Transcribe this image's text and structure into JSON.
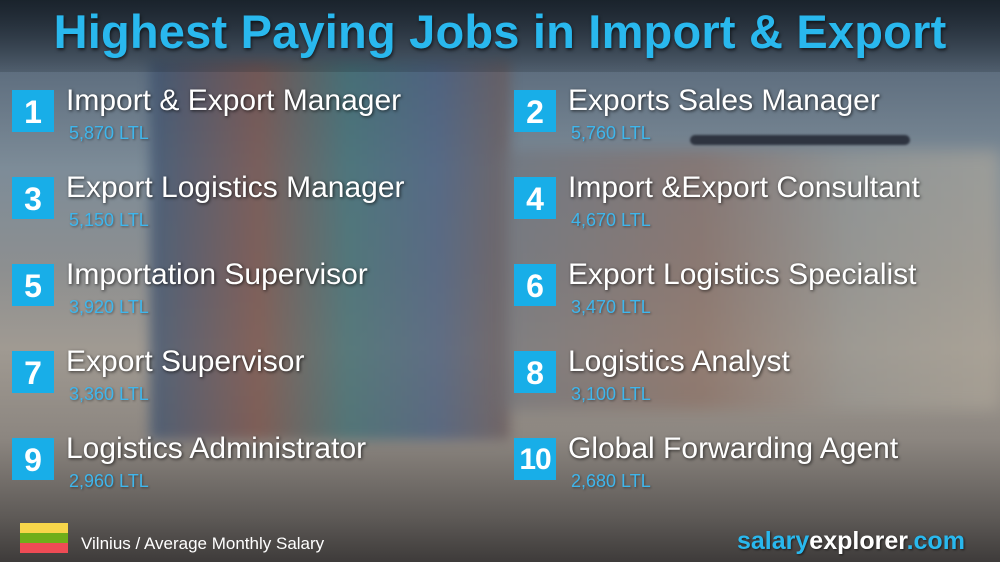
{
  "title": "Highest Paying Jobs in Import & Export",
  "jobs": [
    {
      "rank": "1",
      "title": "Import & Export Manager",
      "salary": "5,870 LTL"
    },
    {
      "rank": "2",
      "title": "Exports Sales Manager",
      "salary": "5,760 LTL"
    },
    {
      "rank": "3",
      "title": "Export Logistics Manager",
      "salary": "5,150 LTL"
    },
    {
      "rank": "4",
      "title": "Import &Export Consultant",
      "salary": "4,670 LTL"
    },
    {
      "rank": "5",
      "title": "Importation Supervisor",
      "salary": "3,920 LTL"
    },
    {
      "rank": "6",
      "title": "Export Logistics Specialist",
      "salary": "3,470 LTL"
    },
    {
      "rank": "7",
      "title": "Export Supervisor",
      "salary": "3,360 LTL"
    },
    {
      "rank": "8",
      "title": "Logistics Analyst",
      "salary": "3,100 LTL"
    },
    {
      "rank": "9",
      "title": "Logistics Administrator",
      "salary": "2,960 LTL"
    },
    {
      "rank": "10",
      "title": "Global Forwarding Agent",
      "salary": "2,680 LTL"
    }
  ],
  "footer": {
    "caption": "Vilnius / Average Monthly Salary",
    "brand_a": "salary",
    "brand_b": "explorer",
    "brand_c": ".com",
    "flag_colors": [
      "#fdb913",
      "#006a44",
      "#c1272d"
    ]
  },
  "colors": {
    "accent": "#18aee8",
    "salary": "#3fb6ec"
  }
}
